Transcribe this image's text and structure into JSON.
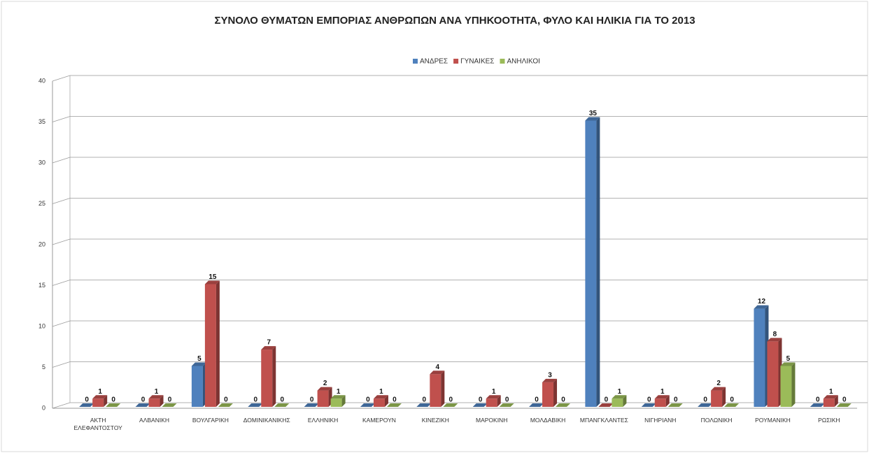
{
  "chart_data": {
    "type": "bar3d",
    "title": "ΣΥΝΟΛΟ ΘΥΜΑΤΩΝ ΕΜΠΟΡΙΑΣ ΑΝΘΡΩΠΩΝ ΑΝΑ ΥΠΗΚΟΟΤΗΤΑ, ΦΥΛΟ ΚΑΙ ΗΛΙΚΙΑ ΓΙΑ ΤΟ 2013",
    "categories": [
      "ΑΚΤΗ ΕΛΕΦΑΝΤΟΣΤΟΥ",
      "ΑΛΒΑΝΙΚΗ",
      "ΒΟΥΛΓΑΡΙΚΗ",
      "ΔΟΜΙΝΙΚΑΝΙΚΗΣ",
      "ΕΛΛΗΝΙΚΗ",
      "ΚΑΜΕΡΟΥΝ",
      "ΚΙΝΕΖΙΚΗ",
      "ΜΑΡΟΚΙΝΗ",
      "ΜΟΛΔΑΒΙΚΗ",
      "ΜΠΑΝΓΚΛΑΝΤΕΣ",
      "ΝΙΓΗΡΙΑΝΗ",
      "ΠΟΛΩΝΙΚΗ",
      "ΡΟΥΜΑΝΙΚΗ",
      "ΡΩΣΙΚΗ"
    ],
    "series": [
      {
        "name": "ΑΝΔΡΕΣ",
        "color": "#4f81bd",
        "values": [
          0,
          0,
          5,
          0,
          0,
          0,
          0,
          0,
          0,
          35,
          0,
          0,
          12,
          0
        ]
      },
      {
        "name": "ΓΥΝΑΙΚΕΣ",
        "color": "#c0504d",
        "values": [
          1,
          1,
          15,
          7,
          2,
          1,
          4,
          1,
          3,
          0,
          1,
          2,
          8,
          1
        ]
      },
      {
        "name": "ΑΝΗΛΙΚΟΙ",
        "color": "#9bbb59",
        "values": [
          0,
          0,
          0,
          0,
          1,
          0,
          0,
          0,
          0,
          1,
          0,
          0,
          5,
          0
        ]
      }
    ],
    "ylim": [
      0,
      40
    ],
    "yticks": [
      0,
      5,
      10,
      15,
      20,
      25,
      30,
      35,
      40
    ],
    "grid": true,
    "legend": "top"
  }
}
